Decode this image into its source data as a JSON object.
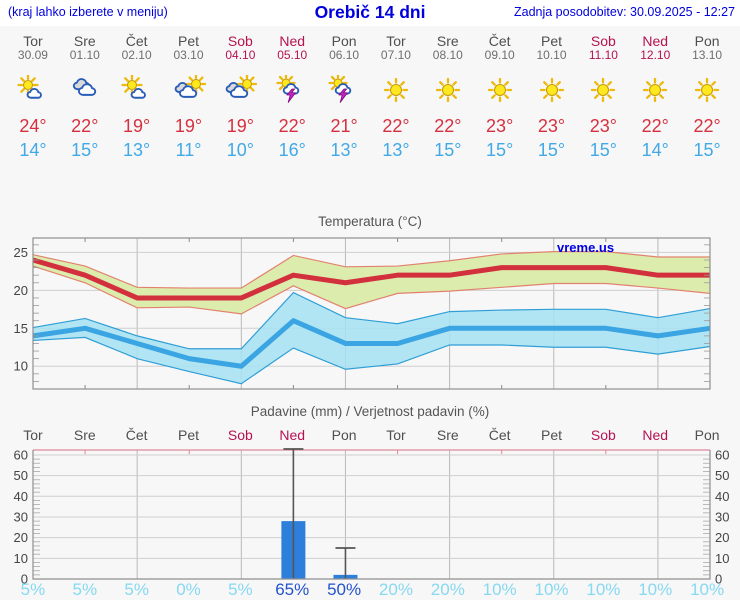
{
  "header": {
    "left_note": "(kraj lahko izberete v meniju)",
    "title": "Orebič 14 dni",
    "updated": "Zadnja posodobitev: 30.09.2025 - 12:27"
  },
  "watermark": "vreme.us",
  "colors": {
    "link_blue": "#0000dd",
    "weekend_red": "#b61250",
    "high_temp_red": "#d6303f",
    "low_temp_blue": "#41a9e6",
    "temp_max_line": "#d2303c",
    "temp_max_band": "#dcecad",
    "temp_max_band_edge": "#e2826e",
    "temp_min_line": "#3aa5e2",
    "temp_min_band": "#a6e2f2",
    "temp_min_band_edge": "#2f9ed6",
    "precip_bar": "#2e7fdc",
    "probability_light": "#86d9f2",
    "probability_emphasis": "#2353cd"
  },
  "days": [
    {
      "name": "Tor",
      "date": "30.09",
      "weekend": false,
      "icon": "sun-cloud",
      "high": "24°",
      "low": "14°"
    },
    {
      "name": "Sre",
      "date": "01.10",
      "weekend": false,
      "icon": "clouds",
      "high": "22°",
      "low": "15°"
    },
    {
      "name": "Čet",
      "date": "02.10",
      "weekend": false,
      "icon": "sun-cloud",
      "high": "19°",
      "low": "13°"
    },
    {
      "name": "Pet",
      "date": "03.10",
      "weekend": false,
      "icon": "cloud-sun",
      "high": "19°",
      "low": "11°"
    },
    {
      "name": "Sob",
      "date": "04.10",
      "weekend": true,
      "icon": "cloud-sun",
      "high": "19°",
      "low": "10°"
    },
    {
      "name": "Ned",
      "date": "05.10",
      "weekend": true,
      "icon": "thunder",
      "high": "22°",
      "low": "16°"
    },
    {
      "name": "Pon",
      "date": "06.10",
      "weekend": false,
      "icon": "thunder",
      "high": "21°",
      "low": "13°"
    },
    {
      "name": "Tor",
      "date": "07.10",
      "weekend": false,
      "icon": "sunny",
      "high": "22°",
      "low": "13°"
    },
    {
      "name": "Sre",
      "date": "08.10",
      "weekend": false,
      "icon": "sunny",
      "high": "22°",
      "low": "15°"
    },
    {
      "name": "Čet",
      "date": "09.10",
      "weekend": false,
      "icon": "sunny",
      "high": "23°",
      "low": "15°"
    },
    {
      "name": "Pet",
      "date": "10.10",
      "weekend": false,
      "icon": "sunny",
      "high": "23°",
      "low": "15°"
    },
    {
      "name": "Sob",
      "date": "11.10",
      "weekend": true,
      "icon": "sunny",
      "high": "23°",
      "low": "15°"
    },
    {
      "name": "Ned",
      "date": "12.10",
      "weekend": true,
      "icon": "sunny",
      "high": "22°",
      "low": "14°"
    },
    {
      "name": "Pon",
      "date": "13.10",
      "weekend": false,
      "icon": "sunny",
      "high": "22°",
      "low": "15°"
    }
  ],
  "chart_data": [
    {
      "type": "line",
      "title": "Temperatura (°C)",
      "x_labels": [
        "Tor",
        "Sre",
        "Čet",
        "Pet",
        "Sob",
        "Ned",
        "Pon",
        "Tor",
        "Sre",
        "Čet",
        "Pet",
        "Sob",
        "Ned",
        "Pon"
      ],
      "ylim": [
        7.0,
        26.9
      ],
      "yticks": [
        10,
        15,
        20,
        25
      ],
      "grid": true,
      "series": [
        {
          "name": "max temperature",
          "values": [
            24,
            22,
            19,
            19,
            19,
            22,
            21,
            22,
            22,
            23,
            23,
            23,
            22,
            22
          ],
          "band_upper": [
            24.7,
            23.2,
            20.4,
            20.3,
            20.3,
            24.6,
            23.1,
            23.2,
            23.9,
            24.8,
            25.1,
            25.1,
            24.4,
            24.4
          ],
          "band_lower": [
            23.2,
            21.0,
            17.7,
            17.8,
            16.9,
            20.6,
            17.6,
            19.6,
            19.9,
            20.4,
            20.9,
            20.9,
            20.3,
            19.6
          ]
        },
        {
          "name": "min temperature",
          "values": [
            14,
            15,
            13,
            11,
            10,
            16,
            13,
            13,
            15,
            15,
            15,
            15,
            14,
            15
          ],
          "band_upper": [
            15.1,
            16.3,
            14.0,
            12.3,
            12.3,
            19.7,
            16.4,
            15.6,
            17.2,
            17.4,
            17.5,
            17.5,
            16.4,
            17.6
          ],
          "band_lower": [
            13.4,
            13.8,
            11.0,
            9.3,
            7.7,
            12.4,
            9.6,
            10.3,
            12.8,
            12.8,
            12.5,
            12.5,
            11.6,
            12.6
          ]
        }
      ]
    },
    {
      "type": "bar",
      "title": "Padavine (mm) / Verjetnost padavin (%)",
      "categories": [
        "Tor",
        "Sre",
        "Čet",
        "Pet",
        "Sob",
        "Ned",
        "Pon",
        "Tor",
        "Sre",
        "Čet",
        "Pet",
        "Sob",
        "Ned",
        "Pon"
      ],
      "weekend_indices": [
        4,
        5,
        11,
        12
      ],
      "values": [
        0,
        0,
        0,
        0,
        0,
        28,
        2,
        0,
        0,
        0,
        0,
        0,
        0,
        0
      ],
      "error_max": [
        null,
        null,
        null,
        null,
        null,
        63,
        15,
        null,
        null,
        null,
        null,
        null,
        null,
        null
      ],
      "probabilities": [
        "5%",
        "5%",
        "5%",
        "0%",
        "5%",
        "65%",
        "50%",
        "20%",
        "20%",
        "10%",
        "10%",
        "10%",
        "10%",
        "10%"
      ],
      "emphasis_indices": [
        5,
        6
      ],
      "ylim": [
        0,
        62.4
      ],
      "yticks": [
        0,
        10,
        20,
        30,
        40,
        50,
        60
      ],
      "grid": true
    }
  ]
}
